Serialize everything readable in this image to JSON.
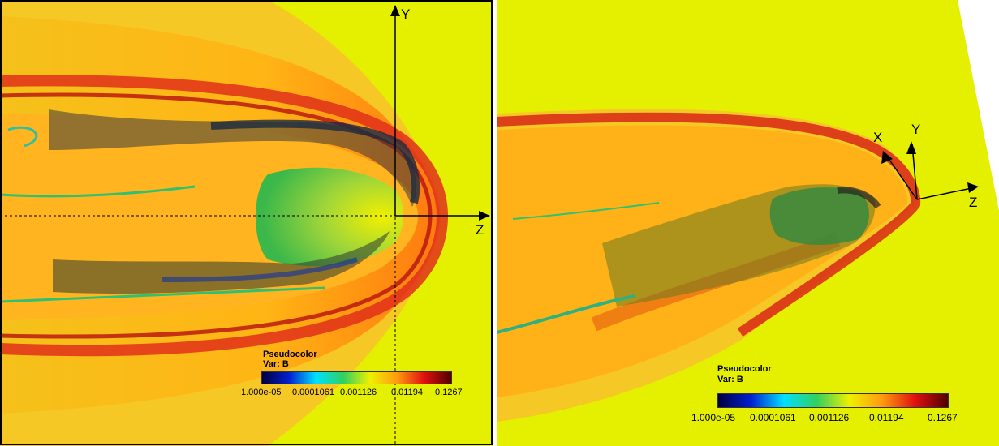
{
  "left_view": {
    "axes": {
      "y_label": "Y",
      "z_label": "Z"
    },
    "legend": {
      "title": "Pseudocolor",
      "var_label": "Var: B",
      "ticks": [
        "1.000e-05",
        "0.0001061",
        "0.001126",
        "0.01194",
        "0.1267"
      ]
    }
  },
  "right_view": {
    "axes": {
      "x_label": "X",
      "y_label": "Y",
      "z_label": "Z"
    },
    "legend": {
      "title": "Pseudocolor",
      "var_label": "Var: B",
      "ticks": [
        "1.000e-05",
        "0.0001061",
        "0.001126",
        "0.01194",
        "0.1267"
      ]
    }
  },
  "colors": {
    "background_field": "#e4f000",
    "colormap": [
      "#000040",
      "#0020d0",
      "#00e0ff",
      "#30d060",
      "#f0f000",
      "#ff9a10",
      "#e01010",
      "#500000"
    ]
  }
}
